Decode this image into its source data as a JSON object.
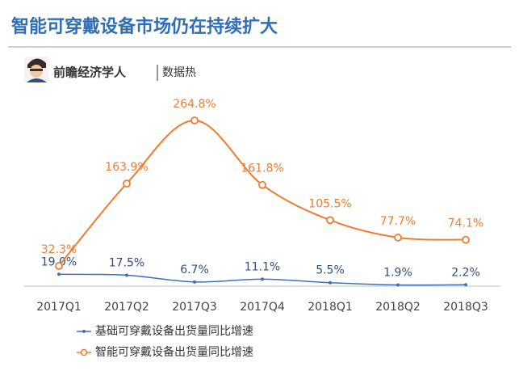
{
  "chart_data": {
    "type": "line",
    "title": "智能可穿戴设备市场仍在持续扩大",
    "source_name": "前瞻经济学人",
    "source_tag": "数据热",
    "categories": [
      "2017Q1",
      "2017Q2",
      "2017Q3",
      "2017Q4",
      "2018Q1",
      "2018Q2",
      "2018Q3"
    ],
    "series": [
      {
        "name": "基础可穿戴设备出货量同比增速",
        "color": "#3f6fb5",
        "values": [
          19.0,
          17.5,
          6.7,
          11.1,
          5.5,
          1.9,
          2.2
        ],
        "value_labels": [
          "19.0%",
          "17.5%",
          "6.7%",
          "11.1%",
          "5.5%",
          "1.9%",
          "2.2%"
        ]
      },
      {
        "name": "智能可穿戴设备出货量同比增速",
        "color": "#ed7d31",
        "values": [
          32.3,
          163.9,
          264.8,
          161.8,
          105.5,
          77.7,
          74.1
        ],
        "value_labels": [
          "32.3%",
          "163.9%",
          "264.8%",
          "161.8%",
          "105.5%",
          "77.7%",
          "74.1%"
        ]
      }
    ]
  }
}
